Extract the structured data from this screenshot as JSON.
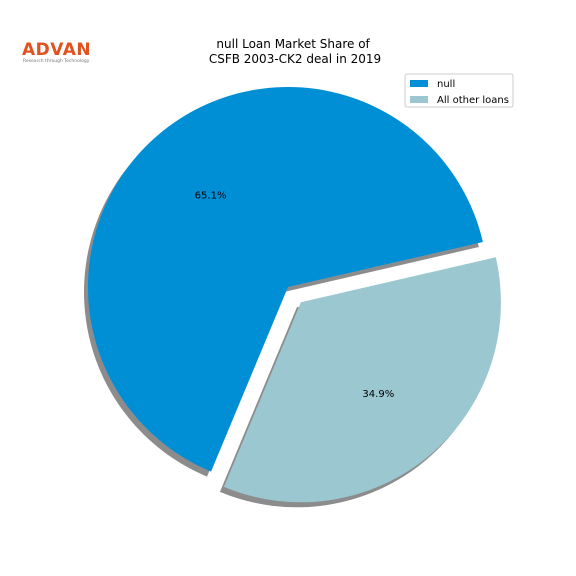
{
  "logo": {
    "word": "ADVAN",
    "tagline": "Research through Technology",
    "color": "#e0531f"
  },
  "chart_data": {
    "type": "pie",
    "title": "null Loan Market Share of\nCSFB 2003-CK2 deal in 2019",
    "slices": [
      {
        "label": "null",
        "value": 65.1,
        "display": "65.1%",
        "color": "#008fd5",
        "exploded": false
      },
      {
        "label": "All other loans",
        "value": 34.9,
        "display": "34.9%",
        "color": "#9ac7d0",
        "exploded": true
      }
    ],
    "legend": {
      "placement": "top-right",
      "entries": [
        "null",
        "All other loans"
      ]
    },
    "shadow": true,
    "shadow_color": "#8c8c8c"
  }
}
